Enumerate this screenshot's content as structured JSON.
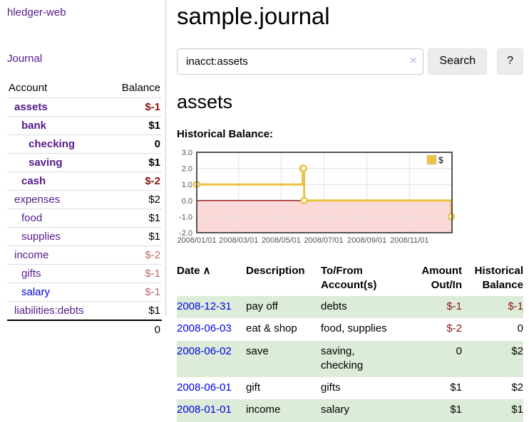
{
  "colors": {
    "link_purple": "#551a8b",
    "link_blue": "#0000e6",
    "negative_dark": "#8b1414",
    "negative_light": "#bf6b6b",
    "row_stripe_green": "#dcecd9",
    "chart_gold": "#edc240"
  },
  "sidebar": {
    "app_title": "hledger-web",
    "journal_label": "Journal",
    "accounts_table": {
      "header_account": "Account",
      "header_balance": "Balance",
      "rows": [
        {
          "name": "assets",
          "indent": 1,
          "bold": true,
          "balance": "$-1",
          "balance_class": "neg-dark"
        },
        {
          "name": "bank",
          "indent": 2,
          "bold": true,
          "balance": "$1",
          "balance_class": ""
        },
        {
          "name": "checking",
          "indent": 3,
          "bold": true,
          "balance": "0",
          "balance_class": ""
        },
        {
          "name": "saving",
          "indent": 3,
          "bold": true,
          "balance": "$1",
          "balance_class": ""
        },
        {
          "name": "cash",
          "indent": 2,
          "bold": true,
          "balance": "$-2",
          "balance_class": "neg-dark"
        },
        {
          "name": "expenses",
          "indent": 1,
          "bold": false,
          "balance": "$2",
          "balance_class": ""
        },
        {
          "name": "food",
          "indent": 2,
          "bold": false,
          "balance": "$1",
          "balance_class": ""
        },
        {
          "name": "supplies",
          "indent": 2,
          "bold": false,
          "balance": "$1",
          "balance_class": ""
        },
        {
          "name": "income",
          "indent": 1,
          "bold": false,
          "balance": "$-2",
          "balance_class": "neg-light"
        },
        {
          "name": "gifts",
          "indent": 2,
          "bold": false,
          "balance": "$-1",
          "balance_class": "neg-light"
        },
        {
          "name": "salary",
          "indent": 2,
          "bold": false,
          "blue": true,
          "balance": "$-1",
          "balance_class": "neg-light"
        },
        {
          "name": "liabilities:debts",
          "indent": 1,
          "bold": false,
          "balance": "$1",
          "balance_class": ""
        }
      ],
      "total": "0"
    }
  },
  "main": {
    "page_title": "sample.journal",
    "search": {
      "value": "inacct:assets",
      "clear_icon": "×",
      "search_button": "Search",
      "help_button": "?"
    },
    "account_heading": "assets",
    "chart_label": "Historical Balance:"
  },
  "chart_data": {
    "type": "line",
    "style": "steps",
    "title": "Historical Balance:",
    "series": [
      {
        "name": "$",
        "color": "#edc240",
        "points": [
          [
            "2008-01-01",
            1
          ],
          [
            "2008-06-01",
            2
          ],
          [
            "2008-06-02",
            2
          ],
          [
            "2008-06-03",
            0
          ],
          [
            "2008-12-31",
            -1
          ]
        ]
      }
    ],
    "x_range": [
      "2008-01-01",
      "2009-01-01"
    ],
    "ylim": [
      -2,
      3
    ],
    "yticks": [
      -2,
      -1,
      0,
      1,
      2,
      3
    ],
    "ytick_labels": [
      "-2.0",
      "-1.0",
      "0.0",
      "1.0",
      "2.0",
      "3.0"
    ],
    "xticks": [
      "2008-01-01",
      "2008-03-01",
      "2008-05-01",
      "2008-07-01",
      "2008-09-01",
      "2008-11-01"
    ],
    "xtick_labels": [
      "2008/01/01",
      "2008/03/01",
      "2008/05/01",
      "2008/07/01",
      "2008/09/01",
      "2008/11/01"
    ],
    "grid": true,
    "legend_position": "top-right",
    "negative_region_color": "#fbd9d9",
    "zero_line_color": "#8e0d0d",
    "grid_color": "#e0e0e0",
    "border_color": "#545454"
  },
  "transactions": {
    "headers": {
      "date": "Date",
      "sort_icon": "∧",
      "description": "Description",
      "accounts": "To/From Account(s)",
      "amount": "Amount Out/In",
      "balance": "Historical Balance"
    },
    "rows": [
      {
        "date": "2008-12-31",
        "description": "pay off",
        "accounts": "debts",
        "amount": "$-1",
        "amount_neg": true,
        "balance": "$-1",
        "balance_neg": true,
        "shaded": true
      },
      {
        "date": "2008-06-03",
        "description": "eat & shop",
        "accounts": "food, supplies",
        "amount": "$-2",
        "amount_neg": true,
        "balance": "0",
        "balance_neg": false,
        "shaded": false
      },
      {
        "date": "2008-06-02",
        "description": "save",
        "accounts": "saving, checking",
        "amount": "0",
        "amount_neg": false,
        "balance": "$2",
        "balance_neg": false,
        "shaded": true
      },
      {
        "date": "2008-06-01",
        "description": "gift",
        "accounts": "gifts",
        "amount": "$1",
        "amount_neg": false,
        "balance": "$2",
        "balance_neg": false,
        "shaded": false
      },
      {
        "date": "2008-01-01",
        "description": "income",
        "accounts": "salary",
        "amount": "$1",
        "amount_neg": false,
        "balance": "$1",
        "balance_neg": false,
        "shaded": true
      }
    ]
  }
}
